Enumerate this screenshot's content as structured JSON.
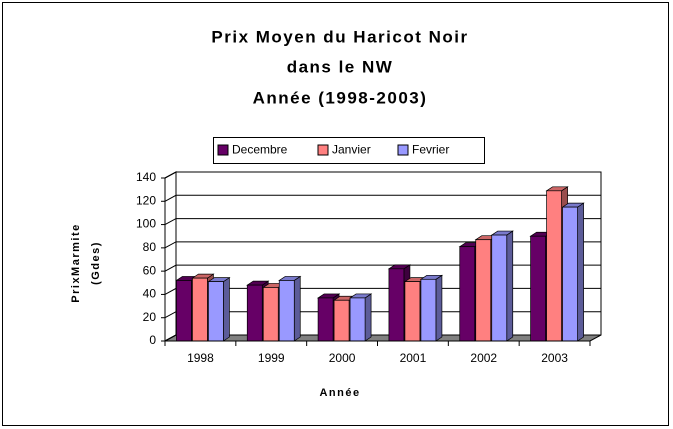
{
  "chart_data": {
    "type": "bar3d",
    "title": [
      "Prix Moyen du Haricot Noir",
      "dans le NW",
      "Année (1998-2003)"
    ],
    "y_label": [
      "PrixMarmite",
      "(Gdes)"
    ],
    "x_label": "Année",
    "categories": [
      "1998",
      "1999",
      "2000",
      "2001",
      "2002",
      "2003"
    ],
    "series": [
      {
        "name": "Decembre",
        "color": "#660066",
        "values": [
          52,
          48,
          37,
          62,
          81,
          90
        ]
      },
      {
        "name": "Janvier",
        "color": "#ff8080",
        "values": [
          54,
          46,
          35,
          51,
          87,
          129
        ]
      },
      {
        "name": "Fevrier",
        "color": "#9999ff",
        "values": [
          51,
          52,
          37,
          53,
          91,
          115
        ]
      }
    ],
    "ylim": [
      0,
      140
    ],
    "yticks": [
      0,
      20,
      40,
      60,
      80,
      100,
      120,
      140
    ],
    "grid": true
  }
}
